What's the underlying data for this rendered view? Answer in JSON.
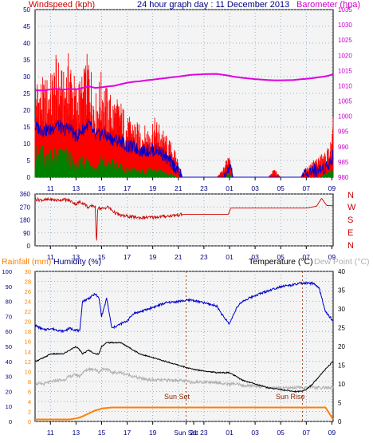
{
  "header": {
    "windspeed_label": "Windspeed (kph)",
    "title": "24 hour graph day : 11 December 2013",
    "barometer_label": "Barometer (hpa)"
  },
  "middle": {
    "compass_letters": [
      "N",
      "W",
      "S",
      "E",
      "N"
    ]
  },
  "bottom_header": {
    "rainfall_label": "Rainfall (mm)",
    "humidity_label": "Humidity (%)",
    "temperature_label": "Temperature (°C)",
    "dewpoint_label": "Dew Point (°C)"
  },
  "annotations": {
    "sunset": "Sun Set",
    "sunrise": "Sun Rise"
  },
  "colors": {
    "wind_gust": "#ff0000",
    "wind_avg": "#0000cc",
    "wind_min": "#008000",
    "barometer": "#e000e0",
    "direction": "#cc0000",
    "humidity": "#0000cc",
    "temperature": "#000000",
    "dewpoint": "#b0b0b0",
    "rainfall": "#ff8000",
    "axis_left": "#000080",
    "axis_right": "#cc00cc",
    "plot_bg": "#f4f4f4"
  },
  "chart_data": [
    {
      "type": "line",
      "title": "24 hour graph day : 11 December 2013",
      "ylabel": "Windspeed (kph)",
      "y2label": "Barometer (hpa)",
      "x_ticks": [
        "11",
        "13",
        "15",
        "17",
        "19",
        "21",
        "23",
        "01",
        "03",
        "05",
        "07",
        "09"
      ],
      "ylim": [
        0,
        50
      ],
      "yticks": [
        0,
        5,
        10,
        15,
        20,
        25,
        30,
        35,
        40,
        45,
        50
      ],
      "y2lim": [
        980,
        1035
      ],
      "y2ticks": [
        980,
        985,
        990,
        995,
        1000,
        1005,
        1010,
        1015,
        1020,
        1025,
        1030,
        1035
      ],
      "grid": true,
      "x_hours": [
        9.8,
        10.5,
        11.0,
        11.5,
        12.0,
        12.5,
        13.0,
        13.5,
        14.0,
        14.5,
        15.0,
        15.5,
        16.0,
        16.5,
        17.0,
        17.5,
        18.0,
        18.5,
        19.0,
        19.5,
        20.0,
        20.5,
        21.0,
        21.3,
        22.0,
        23.0,
        24.0,
        24.5,
        25.0,
        25.3,
        26.0,
        27.0,
        28.0,
        28.5,
        29.0,
        30.0,
        30.5,
        31.0,
        31.5,
        32.0,
        32.5,
        33.0,
        33.1
      ],
      "series": [
        {
          "name": "Windspeed (kph)",
          "role": "gust",
          "values": [
            24,
            23,
            24,
            29,
            24,
            30,
            22,
            24,
            30,
            19,
            25,
            20,
            19,
            18,
            14,
            14,
            12,
            12,
            14,
            13,
            10,
            8,
            4,
            0,
            0,
            0,
            0,
            2,
            7,
            0,
            0,
            0,
            0,
            2,
            0,
            0,
            0,
            2,
            4,
            5,
            6,
            9,
            14
          ]
        },
        {
          "role": "average",
          "values": [
            15,
            14,
            14,
            16,
            14,
            15,
            12,
            14,
            16,
            12,
            13,
            12,
            11,
            11,
            9,
            9,
            8,
            8,
            8,
            8,
            6,
            4,
            2,
            0,
            0,
            0,
            0,
            0,
            3,
            0,
            0,
            0,
            0,
            0,
            0,
            0,
            0,
            1,
            2,
            2,
            3,
            5,
            7
          ]
        },
        {
          "role": "lull",
          "values": [
            7,
            7,
            7,
            6,
            7,
            6,
            3,
            5,
            5,
            2,
            5,
            4,
            4,
            3,
            2,
            2,
            2,
            2,
            2,
            2,
            1,
            1,
            0,
            0,
            0,
            0,
            0,
            0,
            1,
            0,
            0,
            0,
            0,
            0,
            0,
            0,
            0,
            0,
            0,
            0,
            1,
            2,
            4
          ]
        },
        {
          "name": "Barometer (hpa)",
          "axis": "y2",
          "values": [
            1008.5,
            1008.5,
            1008.8,
            1009.0,
            1008.7,
            1009.0,
            1008.8,
            1009.3,
            1009.8,
            1009.3,
            1009.5,
            1009.8,
            1010.0,
            1010.5,
            1011.0,
            1011.3,
            1011.5,
            1011.8,
            1012.0,
            1012.3,
            1012.5,
            1012.8,
            1013.0,
            1013.2,
            1013.6,
            1013.8,
            1013.9,
            1013.6,
            1013.3,
            1013.0,
            1012.6,
            1012.2,
            1011.9,
            1011.8,
            1011.8,
            1011.9,
            1012.1,
            1012.3,
            1012.5,
            1012.8,
            1013.1,
            1013.6,
            1014.0
          ]
        }
      ]
    },
    {
      "type": "line",
      "title": "",
      "x_ticks": [
        "11",
        "13",
        "15",
        "17",
        "19",
        "21",
        "23",
        "01",
        "03",
        "05",
        "07",
        "09"
      ],
      "ylim": [
        0,
        360
      ],
      "yticks": [
        0,
        90,
        180,
        270,
        360
      ],
      "y2_ticklabels": [
        "N",
        "W",
        "S",
        "E",
        "N"
      ],
      "grid": true,
      "x_hours": [
        9.8,
        10.5,
        11.0,
        11.5,
        12.0,
        12.5,
        13.0,
        13.3,
        13.7,
        14.0,
        14.3,
        14.5,
        14.6,
        14.7,
        15.0,
        15.5,
        16.0,
        16.5,
        17.0,
        18.0,
        19.0,
        20.0,
        21.3,
        22.0,
        23.0,
        24.0,
        24.9,
        25.1,
        26.0,
        27.0,
        28.0,
        29.0,
        30.0,
        31.0,
        31.8,
        32.2,
        32.6,
        33.1
      ],
      "series": [
        {
          "values": [
            322,
            318,
            322,
            316,
            322,
            314,
            290,
            305,
            290,
            262,
            282,
            270,
            5,
            270,
            255,
            270,
            232,
            210,
            205,
            195,
            198,
            205,
            218,
            218,
            218,
            218,
            218,
            262,
            262,
            262,
            262,
            262,
            262,
            262,
            275,
            330,
            280,
            278
          ]
        }
      ]
    },
    {
      "type": "line",
      "title": "",
      "x_ticks": [
        "11",
        "13",
        "15",
        "17",
        "19",
        "Sun Set",
        "21",
        "23",
        "01",
        "03",
        "05",
        "07",
        "09"
      ],
      "y_rain_lim": [
        0,
        30
      ],
      "y_rain_ticks": [
        0,
        2,
        4,
        6,
        8,
        10,
        12,
        14,
        16,
        18,
        20,
        22,
        24,
        26,
        28,
        30
      ],
      "y_humidity_lim": [
        0,
        100
      ],
      "y_humidity_ticks": [
        0,
        10,
        20,
        30,
        40,
        50,
        60,
        70,
        80,
        90,
        100
      ],
      "y2lim": [
        0,
        40
      ],
      "y2ticks": [
        0,
        5,
        10,
        15,
        20,
        25,
        30,
        35,
        40
      ],
      "grid": true,
      "x_hours": [
        9.8,
        10.5,
        11.0,
        11.5,
        12.0,
        12.5,
        13.0,
        13.3,
        13.5,
        14.0,
        14.5,
        14.8,
        15.0,
        15.4,
        15.8,
        16.5,
        17.0,
        17.5,
        18.0,
        19.0,
        20.0,
        21.0,
        22.0,
        23.0,
        24.0,
        24.5,
        25.0,
        25.5,
        26.0,
        27.0,
        28.0,
        29.0,
        30.0,
        30.5,
        31.0,
        31.5,
        32.0,
        32.5,
        33.1
      ],
      "series": [
        {
          "name": "Humidity (%)",
          "values": [
            64,
            61,
            62,
            61,
            60,
            62,
            61,
            60,
            80,
            82,
            85,
            82,
            70,
            82,
            62,
            65,
            67,
            72,
            73,
            76,
            79,
            80,
            81,
            79,
            77,
            70,
            65,
            75,
            80,
            84,
            87,
            90,
            91,
            92,
            92,
            92,
            89,
            73,
            67
          ]
        },
        {
          "name": "Temperature (°C)",
          "values": [
            16,
            17,
            18,
            18,
            18,
            19,
            20,
            19,
            18,
            19,
            18,
            18,
            20,
            21,
            21,
            21,
            20,
            19,
            18,
            17,
            16,
            15,
            14,
            13.5,
            13,
            13,
            13,
            12,
            11,
            10,
            9,
            8.5,
            8,
            8,
            8.5,
            10,
            12,
            14,
            16
          ]
        },
        {
          "name": "Dew Point (°C)",
          "values": [
            10,
            10,
            10.5,
            11,
            11,
            12,
            12.5,
            12,
            13,
            14,
            14,
            13,
            14,
            14,
            13,
            13,
            12.5,
            12,
            11.5,
            11,
            11,
            11,
            10.5,
            10.5,
            10.5,
            10,
            10,
            10,
            9.5,
            9.5,
            9,
            9,
            9,
            9,
            9,
            9,
            9,
            9,
            9
          ]
        },
        {
          "name": "Rainfall (mm)",
          "values": [
            0.4,
            0.4,
            0.4,
            0.4,
            0.4,
            0.4,
            0.6,
            0.8,
            1.0,
            1.6,
            2.2,
            2.4,
            2.6,
            2.7,
            2.8,
            2.8,
            2.8,
            2.8,
            2.8,
            2.8,
            2.8,
            2.8,
            2.8,
            2.8,
            2.8,
            2.8,
            2.8,
            2.8,
            2.8,
            2.8,
            2.8,
            2.8,
            2.8,
            2.8,
            2.8,
            2.8,
            2.8,
            2.8,
            0.4
          ]
        }
      ]
    }
  ]
}
